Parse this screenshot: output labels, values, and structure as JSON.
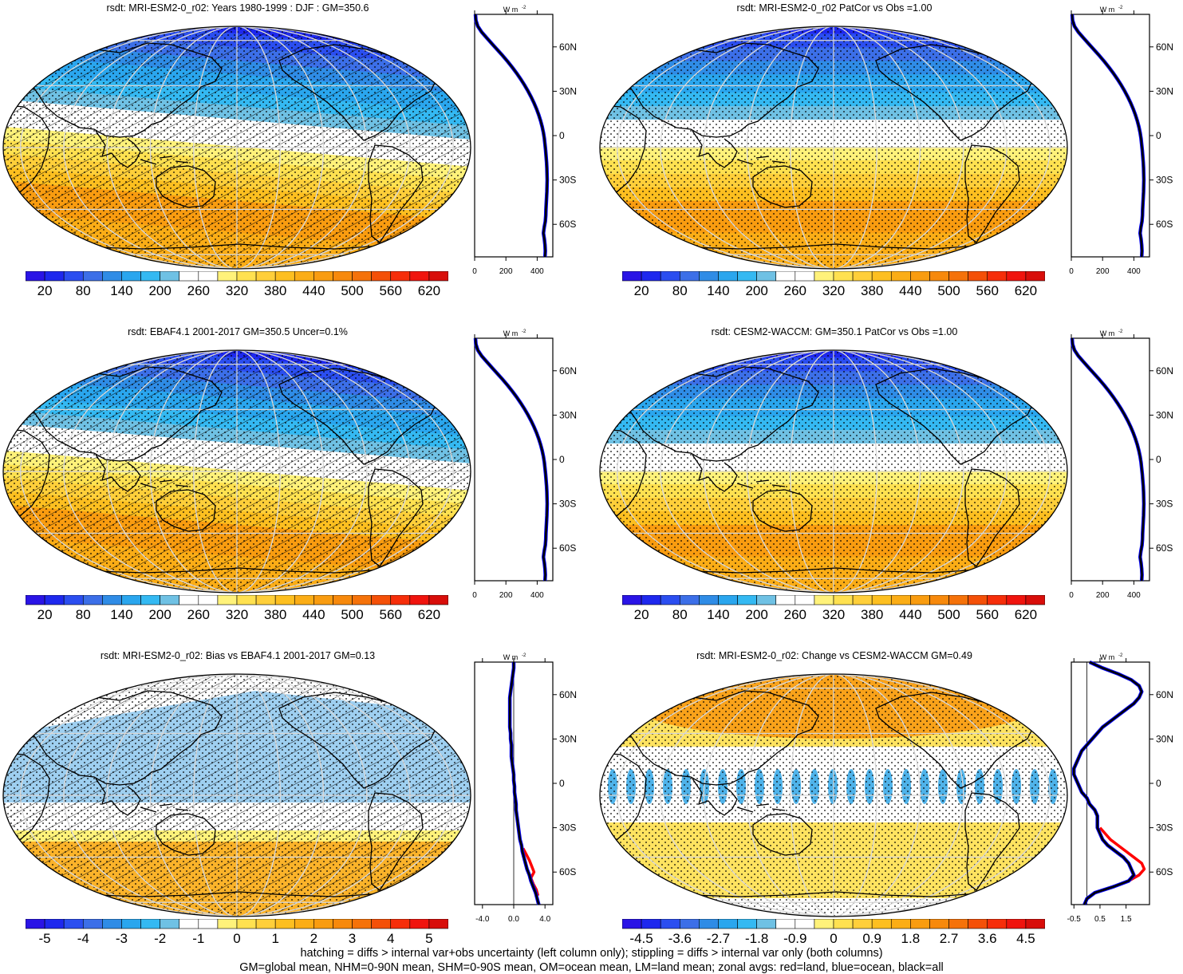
{
  "colors": {
    "stipple": "#000000",
    "coast": "#000000",
    "grid": "#d8d8d8",
    "zonal_all": "#000000",
    "zonal_land": "#ff0000",
    "zonal_ocean": "#0000ff"
  },
  "abs_palette": [
    "#2a14e6",
    "#1e28ee",
    "#2b4ef0",
    "#3c6fe8",
    "#2f8ce6",
    "#2aa6ee",
    "#34b9f2",
    "#6fc1e4",
    "#ffffff",
    "#ffffff",
    "#fff27a",
    "#ffe150",
    "#ffcf3a",
    "#fdbf20",
    "#fbad16",
    "#f99c10",
    "#f7890c",
    "#f5720a",
    "#f45008",
    "#f62e0a",
    "#f0140e",
    "#d80e0a"
  ],
  "diff_palette": [
    "#2a14e6",
    "#1e28ee",
    "#2b4ef0",
    "#3c6fe8",
    "#2f8ce6",
    "#2aa6ee",
    "#34b9f2",
    "#6fc1e4",
    "#ffffff",
    "#ffffff",
    "#fff27a",
    "#ffe150",
    "#ffcf3a",
    "#fdbf20",
    "#fbad16",
    "#f99c10",
    "#f7890c",
    "#f5720a",
    "#f45008",
    "#f62e0a",
    "#f0140e",
    "#d80e0a"
  ],
  "panels": [
    {
      "id": "p1",
      "title": "rsdt: MRI-ESM2-0_r02: Years 1980-1999 : DJF : GM=350.6",
      "colorbar_labels": [
        "20",
        "80",
        "140",
        "200",
        "260",
        "320",
        "380",
        "440",
        "500",
        "560",
        "620"
      ],
      "map_kind": "abs",
      "hatched": true,
      "zonal": {
        "unit": "W m",
        "unit_exp": "-2",
        "x_ticks": [
          "0",
          "200",
          "400"
        ],
        "xlim": [
          0,
          500
        ],
        "lat_ticks": [
          "60N",
          "30N",
          "0",
          "30S",
          "60S"
        ],
        "lat_values": [
          60,
          30,
          0,
          -30,
          -60
        ],
        "lat_range": [
          -82,
          82
        ],
        "zero_line": false,
        "series_all": {
          "lat": [
            82,
            78,
            74,
            70,
            66,
            62,
            58,
            54,
            50,
            46,
            42,
            38,
            34,
            30,
            26,
            22,
            18,
            14,
            10,
            6,
            2,
            -2,
            -6,
            -10,
            -14,
            -18,
            -22,
            -26,
            -30,
            -34,
            -38,
            -42,
            -46,
            -50,
            -54,
            -58,
            -62,
            -66,
            -70,
            -74,
            -78,
            -82
          ],
          "val": [
            5,
            8,
            20,
            45,
            78,
            112,
            146,
            180,
            212,
            242,
            270,
            296,
            320,
            342,
            362,
            380,
            396,
            410,
            422,
            432,
            440,
            446,
            450,
            454,
            457,
            460,
            462,
            463,
            464,
            463,
            462,
            460,
            458,
            456,
            455,
            452,
            445,
            440,
            446,
            450,
            452,
            450
          ]
        }
      }
    },
    {
      "id": "p2",
      "title": "rsdt: MRI-ESM2-0_r02 PatCor vs Obs =1.00",
      "colorbar_labels": [
        "20",
        "80",
        "140",
        "200",
        "260",
        "320",
        "380",
        "440",
        "500",
        "560",
        "620"
      ],
      "map_kind": "abs",
      "hatched": false,
      "zonal": {
        "unit": "W m",
        "unit_exp": "-2",
        "x_ticks": [
          "0",
          "200",
          "400"
        ],
        "xlim": [
          0,
          500
        ],
        "lat_ticks": [
          "60N",
          "30N",
          "0",
          "30S",
          "60S"
        ],
        "lat_values": [
          60,
          30,
          0,
          -30,
          -60
        ],
        "lat_range": [
          -82,
          82
        ],
        "zero_line": false,
        "series_all": {
          "lat": [
            82,
            78,
            74,
            70,
            66,
            62,
            58,
            54,
            50,
            46,
            42,
            38,
            34,
            30,
            26,
            22,
            18,
            14,
            10,
            6,
            2,
            -2,
            -6,
            -10,
            -14,
            -18,
            -22,
            -26,
            -30,
            -34,
            -38,
            -42,
            -46,
            -50,
            -54,
            -58,
            -62,
            -66,
            -70,
            -74,
            -78,
            -82
          ],
          "val": [
            5,
            8,
            20,
            45,
            78,
            112,
            146,
            180,
            212,
            242,
            270,
            296,
            320,
            342,
            362,
            380,
            396,
            410,
            422,
            432,
            440,
            446,
            450,
            454,
            457,
            460,
            462,
            463,
            464,
            463,
            462,
            460,
            458,
            456,
            455,
            452,
            445,
            440,
            446,
            450,
            452,
            450
          ]
        }
      }
    },
    {
      "id": "p3",
      "title": "rsdt: EBAF4.1 2001-2017 GM=350.5 Uncer=0.1%",
      "colorbar_labels": [
        "20",
        "80",
        "140",
        "200",
        "260",
        "320",
        "380",
        "440",
        "500",
        "560",
        "620"
      ],
      "map_kind": "abs",
      "hatched": true,
      "zonal": {
        "unit": "W m",
        "unit_exp": "-2",
        "x_ticks": [
          "0",
          "200",
          "400"
        ],
        "xlim": [
          0,
          500
        ],
        "lat_ticks": [
          "60N",
          "30N",
          "0",
          "30S",
          "60S"
        ],
        "lat_values": [
          60,
          30,
          0,
          -30,
          -60
        ],
        "lat_range": [
          -82,
          82
        ],
        "zero_line": false,
        "series_all": {
          "lat": [
            82,
            78,
            74,
            70,
            66,
            62,
            58,
            54,
            50,
            46,
            42,
            38,
            34,
            30,
            26,
            22,
            18,
            14,
            10,
            6,
            2,
            -2,
            -6,
            -10,
            -14,
            -18,
            -22,
            -26,
            -30,
            -34,
            -38,
            -42,
            -46,
            -50,
            -54,
            -58,
            -62,
            -66,
            -70,
            -74,
            -78,
            -82
          ],
          "val": [
            5,
            8,
            20,
            45,
            78,
            112,
            146,
            180,
            212,
            242,
            270,
            296,
            320,
            342,
            362,
            380,
            396,
            410,
            422,
            432,
            440,
            446,
            450,
            454,
            457,
            460,
            462,
            463,
            464,
            463,
            462,
            460,
            458,
            456,
            455,
            452,
            445,
            440,
            446,
            450,
            452,
            450
          ]
        }
      }
    },
    {
      "id": "p4",
      "title": "rsdt: CESM2-WACCM: GM=350.1 PatCor vs Obs =1.00",
      "colorbar_labels": [
        "20",
        "80",
        "140",
        "200",
        "260",
        "320",
        "380",
        "440",
        "500",
        "560",
        "620"
      ],
      "map_kind": "abs",
      "hatched": false,
      "zonal": {
        "unit": "W m",
        "unit_exp": "-2",
        "x_ticks": [
          "0",
          "200",
          "400"
        ],
        "xlim": [
          0,
          500
        ],
        "lat_ticks": [
          "60N",
          "30N",
          "0",
          "30S",
          "60S"
        ],
        "lat_values": [
          60,
          30,
          0,
          -30,
          -60
        ],
        "lat_range": [
          -82,
          82
        ],
        "zero_line": false,
        "series_all": {
          "lat": [
            82,
            78,
            74,
            70,
            66,
            62,
            58,
            54,
            50,
            46,
            42,
            38,
            34,
            30,
            26,
            22,
            18,
            14,
            10,
            6,
            2,
            -2,
            -6,
            -10,
            -14,
            -18,
            -22,
            -26,
            -30,
            -34,
            -38,
            -42,
            -46,
            -50,
            -54,
            -58,
            -62,
            -66,
            -70,
            -74,
            -78,
            -82
          ],
          "val": [
            5,
            8,
            20,
            45,
            78,
            112,
            146,
            180,
            212,
            242,
            270,
            296,
            320,
            342,
            362,
            380,
            396,
            410,
            422,
            432,
            440,
            446,
            450,
            454,
            457,
            460,
            462,
            463,
            464,
            463,
            462,
            460,
            458,
            456,
            455,
            452,
            445,
            440,
            446,
            450,
            452,
            450
          ]
        }
      }
    },
    {
      "id": "p5",
      "title": "rsdt: MRI-ESM2-0_r02: Bias vs EBAF4.1 2001-2017 GM=0.13",
      "colorbar_labels": [
        "-5",
        "-4",
        "-3",
        "-2",
        "-1",
        "0",
        "1",
        "2",
        "3",
        "4",
        "5"
      ],
      "map_kind": "bias",
      "hatched": true,
      "zonal": {
        "unit": "W m",
        "unit_exp": "-2",
        "x_ticks": [
          "-4.0",
          "0.0",
          "4.0"
        ],
        "x_tick_values": [
          -4,
          0,
          4
        ],
        "xlim": [
          -5,
          5
        ],
        "lat_ticks": [
          "60N",
          "30N",
          "0",
          "30S",
          "60S"
        ],
        "lat_values": [
          60,
          30,
          0,
          -30,
          -60
        ],
        "lat_range": [
          -82,
          82
        ],
        "zero_line": true,
        "series_all": {
          "lat": [
            82,
            78,
            74,
            70,
            66,
            62,
            58,
            54,
            50,
            46,
            42,
            38,
            34,
            30,
            26,
            22,
            18,
            14,
            10,
            6,
            2,
            -2,
            -6,
            -10,
            -14,
            -18,
            -22,
            -26,
            -30,
            -34,
            -38,
            -42,
            -46,
            -50,
            -54,
            -58,
            -62,
            -66,
            -70,
            -74,
            -78,
            -82
          ],
          "val": [
            0,
            0,
            -0.1,
            -0.2,
            -0.3,
            -0.4,
            -0.5,
            -0.5,
            -0.5,
            -0.5,
            -0.5,
            -0.5,
            -0.4,
            -0.4,
            -0.3,
            -0.3,
            -0.3,
            -0.2,
            -0.1,
            0,
            0,
            0.1,
            0.1,
            0.2,
            0.3,
            0.3,
            0.4,
            0.5,
            0.6,
            0.7,
            0.8,
            1.0,
            1.1,
            1.3,
            1.5,
            1.7,
            2.0,
            2.2,
            2.5,
            2.8,
            3.0,
            3.2
          ]
        },
        "series_land": {
          "lat": [
            -44,
            -48,
            -52,
            -56,
            -60,
            -64,
            -68,
            -72,
            -76
          ],
          "val": [
            1.2,
            1.6,
            2.0,
            2.3,
            2.6,
            2.2,
            2.5,
            2.9,
            3.1
          ]
        }
      }
    },
    {
      "id": "p6",
      "title": "rsdt: MRI-ESM2-0_r02: Change vs CESM2-WACCM GM=0.49",
      "colorbar_labels": [
        "-4.5",
        "-3.6",
        "-2.7",
        "-1.8",
        "-0.9",
        "0",
        "0.9",
        "1.8",
        "2.7",
        "3.6",
        "4.5"
      ],
      "map_kind": "change",
      "hatched": false,
      "zonal": {
        "unit": "W m",
        "unit_exp": "-2",
        "x_ticks": [
          "-0.5",
          "0.5",
          "1.5"
        ],
        "x_tick_values": [
          -0.5,
          0.5,
          1.5
        ],
        "xlim": [
          -0.6,
          2.4
        ],
        "lat_ticks": [
          "60N",
          "30N",
          "0",
          "30S",
          "60S"
        ],
        "lat_values": [
          60,
          30,
          0,
          -30,
          -60
        ],
        "lat_range": [
          -82,
          82
        ],
        "zero_line": true,
        "series_all": {
          "lat": [
            82,
            78,
            74,
            70,
            66,
            62,
            58,
            54,
            50,
            46,
            42,
            38,
            34,
            30,
            26,
            22,
            18,
            14,
            10,
            6,
            2,
            -2,
            -6,
            -10,
            -14,
            -18,
            -22,
            -26,
            -30,
            -34,
            -38,
            -42,
            -46,
            -50,
            -54,
            -58,
            -62,
            -66,
            -70,
            -74,
            -78,
            -82
          ],
          "val": [
            0.1,
            0.6,
            1.2,
            1.7,
            2.0,
            2.1,
            2.0,
            1.8,
            1.5,
            1.2,
            0.9,
            0.6,
            0.4,
            0.2,
            0.0,
            -0.2,
            -0.3,
            -0.4,
            -0.5,
            -0.5,
            -0.4,
            -0.3,
            -0.2,
            0.0,
            0.1,
            0.3,
            0.4,
            0.4,
            0.4,
            0.5,
            0.6,
            0.8,
            1.1,
            1.4,
            1.6,
            1.7,
            1.8,
            1.6,
            1.0,
            0.3,
            0.0,
            -0.1
          ]
        },
        "series_land": {
          "lat": [
            -30,
            -34,
            -38,
            -42,
            -46,
            -50,
            -54,
            -58,
            -62,
            -66,
            -70
          ],
          "val": [
            0.5,
            0.7,
            0.9,
            1.2,
            1.5,
            1.8,
            2.1,
            2.2,
            2.0,
            1.6,
            1.0
          ]
        }
      }
    }
  ],
  "footer": {
    "line1": "hatching = diffs > internal var+obs uncertainty (left column only); stippling = diffs > internal var only (both columns)",
    "line2": "GM=global mean, NHM=0-90N mean, SHM=0-90S mean, OM=ocean mean, LM=land mean; zonal avgs: red=land, blue=ocean, black=all"
  }
}
